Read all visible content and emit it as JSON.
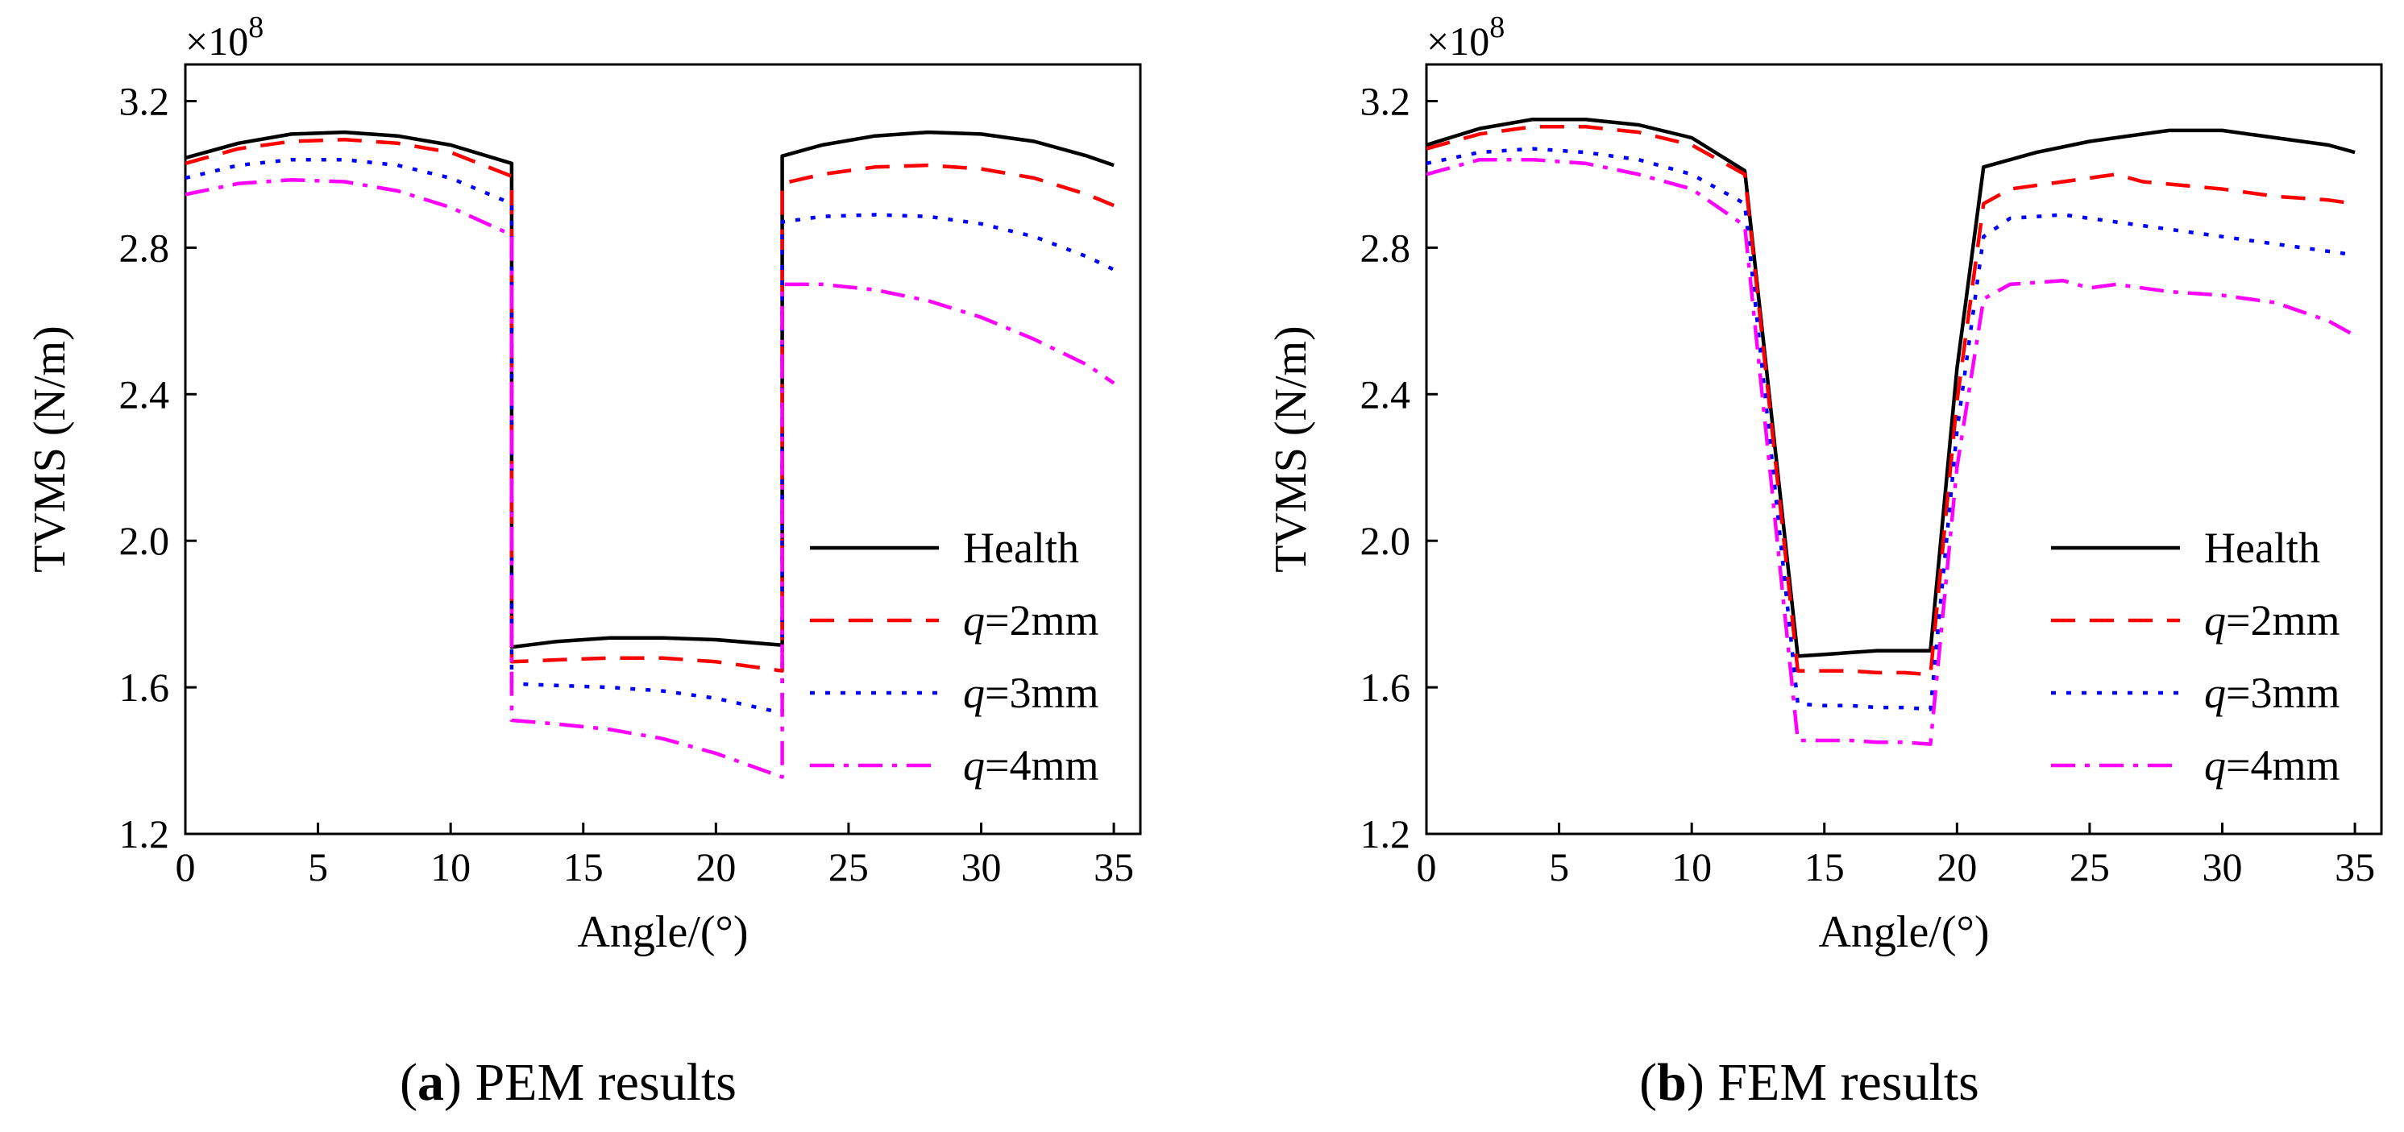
{
  "chart_data": [
    {
      "id": "a",
      "type": "line",
      "caption_letter": "a",
      "caption_text": " PEM results",
      "xlabel": "Angle/(°)",
      "ylabel": "TVMS (N/m)",
      "y_multiplier": "×10",
      "y_multiplier_exp": "8",
      "xlim": [
        0,
        36
      ],
      "ylim": [
        1.2,
        3.3
      ],
      "xticks": [
        0,
        5,
        10,
        15,
        20,
        25,
        30,
        35
      ],
      "yticks": [
        1.2,
        1.6,
        2.0,
        2.4,
        2.8,
        3.2
      ],
      "ytick_labels": [
        "1.2",
        "1.6",
        "2.0",
        "2.4",
        "2.8",
        "3.2"
      ],
      "legend_position": "right-center",
      "series": [
        {
          "name": "Health",
          "legend_prefix": "",
          "legend_main": "Health",
          "color": "#000000",
          "style": "solid",
          "x": [
            0,
            2,
            4,
            6,
            8,
            10,
            12.3,
            12.3,
            14,
            16,
            18,
            20,
            22.5,
            22.5,
            24,
            26,
            28,
            30,
            32,
            34,
            35
          ],
          "y": [
            3.045,
            3.085,
            3.11,
            3.115,
            3.105,
            3.08,
            3.03,
            1.71,
            1.725,
            1.735,
            1.735,
            1.73,
            1.715,
            3.05,
            3.08,
            3.105,
            3.115,
            3.11,
            3.09,
            3.05,
            3.025
          ]
        },
        {
          "name": "q=2mm",
          "legend_prefix": "q",
          "legend_main": "=2mm",
          "color": "#ff0000",
          "style": "dashed",
          "x": [
            0,
            2,
            4,
            6,
            8,
            10,
            12.3,
            12.3,
            14,
            16,
            18,
            20,
            22.5,
            22.5,
            24,
            26,
            28,
            30,
            32,
            34,
            35
          ],
          "y": [
            3.03,
            3.07,
            3.09,
            3.095,
            3.085,
            3.06,
            2.995,
            1.67,
            1.675,
            1.68,
            1.68,
            1.67,
            1.645,
            2.975,
            3.0,
            3.02,
            3.025,
            3.015,
            2.99,
            2.945,
            2.915
          ]
        },
        {
          "name": "q=3mm",
          "legend_prefix": "q",
          "legend_main": "=3mm",
          "color": "#0000ff",
          "style": "dotted",
          "x": [
            0,
            2,
            4,
            6,
            8,
            10,
            12.3,
            12.3,
            14,
            16,
            18,
            20,
            22.5,
            22.5,
            24,
            26,
            28,
            30,
            32,
            34,
            35
          ],
          "y": [
            2.99,
            3.025,
            3.04,
            3.04,
            3.025,
            2.99,
            2.92,
            1.61,
            1.605,
            1.6,
            1.59,
            1.57,
            1.53,
            2.87,
            2.885,
            2.89,
            2.885,
            2.865,
            2.83,
            2.775,
            2.74
          ]
        },
        {
          "name": "q=4mm",
          "legend_prefix": "q",
          "legend_main": "=4mm",
          "color": "#ff00ff",
          "style": "dashdot",
          "x": [
            0,
            2,
            4,
            6,
            8,
            10,
            12.3,
            12.3,
            14,
            16,
            18,
            20,
            22.5,
            22.5,
            24,
            26,
            28,
            30,
            32,
            34,
            35
          ],
          "y": [
            2.945,
            2.975,
            2.985,
            2.98,
            2.955,
            2.91,
            2.835,
            1.51,
            1.5,
            1.485,
            1.46,
            1.42,
            1.355,
            2.7,
            2.7,
            2.685,
            2.655,
            2.61,
            2.55,
            2.48,
            2.43
          ]
        }
      ]
    },
    {
      "id": "b",
      "type": "line",
      "caption_letter": "b",
      "caption_text": " FEM results",
      "xlabel": "Angle/(°)",
      "ylabel": "TVMS (N/m)",
      "y_multiplier": "×10",
      "y_multiplier_exp": "8",
      "xlim": [
        0,
        36
      ],
      "ylim": [
        1.2,
        3.3
      ],
      "xticks": [
        0,
        5,
        10,
        15,
        20,
        25,
        30,
        35
      ],
      "yticks": [
        1.2,
        1.6,
        2.0,
        2.4,
        2.8,
        3.2
      ],
      "ytick_labels": [
        "1.2",
        "1.6",
        "2.0",
        "2.4",
        "2.8",
        "3.2"
      ],
      "legend_position": "right-center",
      "series": [
        {
          "name": "Health",
          "legend_prefix": "",
          "legend_main": "Health",
          "color": "#000000",
          "style": "solid",
          "x": [
            0,
            2,
            4,
            6,
            8,
            10,
            12,
            14,
            15,
            16,
            17,
            18,
            19,
            20,
            21,
            23,
            25,
            27,
            28,
            30,
            32,
            34,
            35
          ],
          "y": [
            3.08,
            3.125,
            3.15,
            3.15,
            3.135,
            3.1,
            3.01,
            1.685,
            1.69,
            1.695,
            1.7,
            1.7,
            1.7,
            2.47,
            3.02,
            3.06,
            3.09,
            3.11,
            3.12,
            3.12,
            3.1,
            3.08,
            3.06
          ]
        },
        {
          "name": "q=2mm",
          "legend_prefix": "q",
          "legend_main": "=2mm",
          "color": "#ff0000",
          "style": "dashed",
          "x": [
            0,
            2,
            4,
            6,
            8,
            10,
            12,
            14,
            15,
            16,
            17,
            18,
            19,
            20,
            21,
            22,
            24,
            26,
            27,
            30,
            32,
            34,
            35
          ],
          "y": [
            3.07,
            3.11,
            3.13,
            3.13,
            3.115,
            3.08,
            3.0,
            1.645,
            1.645,
            1.645,
            1.64,
            1.64,
            1.635,
            2.38,
            2.92,
            2.96,
            2.98,
            3.0,
            2.98,
            2.96,
            2.94,
            2.93,
            2.92
          ]
        },
        {
          "name": "q=3mm",
          "legend_prefix": "q",
          "legend_main": "=3mm",
          "color": "#0000ff",
          "style": "dotted",
          "x": [
            0,
            2,
            4,
            6,
            8,
            10,
            12,
            14,
            15,
            16,
            17,
            18,
            19,
            20,
            21,
            22,
            24,
            26,
            28,
            30,
            32,
            34,
            35
          ],
          "y": [
            3.03,
            3.06,
            3.07,
            3.06,
            3.04,
            3.0,
            2.92,
            1.555,
            1.55,
            1.55,
            1.545,
            1.545,
            1.54,
            2.3,
            2.83,
            2.88,
            2.89,
            2.87,
            2.85,
            2.83,
            2.81,
            2.79,
            2.78
          ]
        },
        {
          "name": "q=4mm",
          "legend_prefix": "q",
          "legend_main": "=4mm",
          "color": "#ff00ff",
          "style": "dashdot",
          "x": [
            0,
            2,
            4,
            6,
            8,
            10,
            12,
            14,
            15,
            16,
            17,
            18,
            19,
            20,
            21,
            22,
            24,
            25,
            26,
            28,
            30,
            32,
            34,
            35
          ],
          "y": [
            3.0,
            3.04,
            3.04,
            3.03,
            3.0,
            2.96,
            2.86,
            1.455,
            1.455,
            1.455,
            1.45,
            1.45,
            1.445,
            2.2,
            2.66,
            2.7,
            2.71,
            2.69,
            2.7,
            2.68,
            2.67,
            2.65,
            2.6,
            2.56
          ]
        }
      ]
    }
  ]
}
